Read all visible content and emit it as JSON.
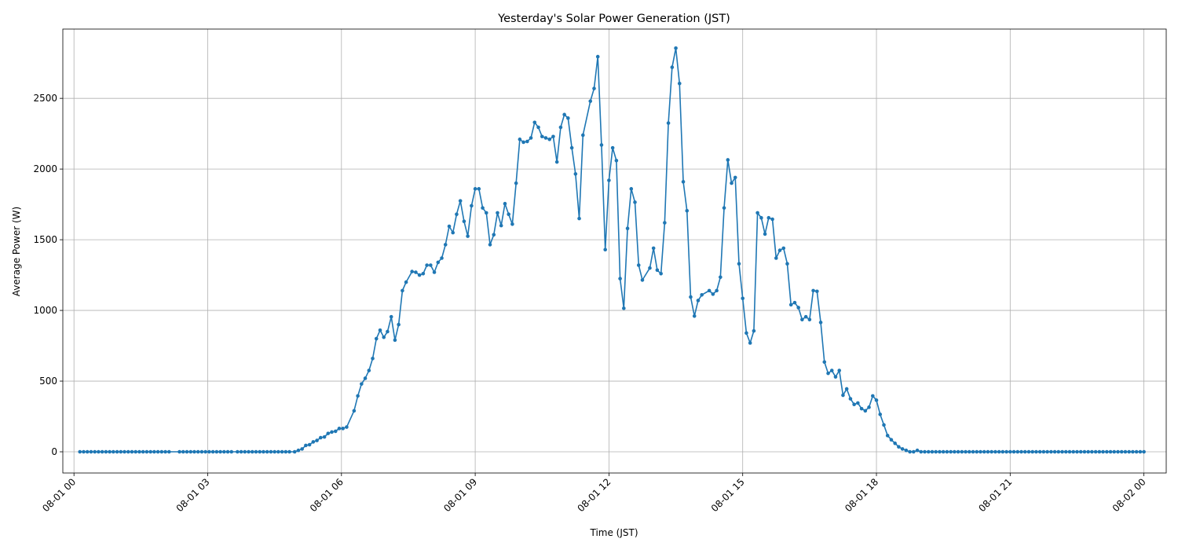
{
  "chart_data": {
    "type": "line",
    "title": "Yesterday's Solar Power Generation (JST)",
    "xlabel": "Time (JST)",
    "ylabel": "Average Power (W)",
    "grid": true,
    "color": "#1f77b4",
    "xlim": [
      -0.25,
      24.5
    ],
    "ylim": [
      -150,
      2990
    ],
    "y_ticks": [
      0,
      500,
      1000,
      1500,
      2000,
      2500
    ],
    "x_ticks": [
      {
        "label": "08-01 00",
        "hour": 0
      },
      {
        "label": "08-01 03",
        "hour": 3
      },
      {
        "label": "08-01 06",
        "hour": 6
      },
      {
        "label": "08-01 09",
        "hour": 9
      },
      {
        "label": "08-01 12",
        "hour": 12
      },
      {
        "label": "08-01 15",
        "hour": 15
      },
      {
        "label": "08-01 18",
        "hour": 18
      },
      {
        "label": "08-01 21",
        "hour": 21
      },
      {
        "label": "08-02 00",
        "hour": 24
      }
    ],
    "points": [
      [
        0.133,
        0
      ],
      [
        0.217,
        0
      ],
      [
        0.3,
        0
      ],
      [
        0.383,
        0
      ],
      [
        0.467,
        0
      ],
      [
        0.55,
        0
      ],
      [
        0.633,
        0
      ],
      [
        0.717,
        0
      ],
      [
        0.8,
        0
      ],
      [
        0.883,
        0
      ],
      [
        0.967,
        0
      ],
      [
        1.05,
        0
      ],
      [
        1.133,
        0
      ],
      [
        1.217,
        0
      ],
      [
        1.3,
        0
      ],
      [
        1.383,
        0
      ],
      [
        1.467,
        0
      ],
      [
        1.55,
        0
      ],
      [
        1.633,
        0
      ],
      [
        1.717,
        0
      ],
      [
        1.8,
        0
      ],
      [
        1.883,
        0
      ],
      [
        1.967,
        0
      ],
      [
        2.05,
        0
      ],
      [
        2.133,
        0
      ],
      [
        2.367,
        0
      ],
      [
        2.45,
        0
      ],
      [
        2.533,
        0
      ],
      [
        2.617,
        0
      ],
      [
        2.7,
        0
      ],
      [
        2.783,
        0
      ],
      [
        2.867,
        0
      ],
      [
        2.95,
        0
      ],
      [
        3.033,
        0
      ],
      [
        3.117,
        0
      ],
      [
        3.2,
        0
      ],
      [
        3.283,
        0
      ],
      [
        3.367,
        0
      ],
      [
        3.45,
        0
      ],
      [
        3.533,
        0
      ],
      [
        3.667,
        0
      ],
      [
        3.75,
        0
      ],
      [
        3.833,
        0
      ],
      [
        3.917,
        0
      ],
      [
        4.0,
        0
      ],
      [
        4.083,
        0
      ],
      [
        4.167,
        0
      ],
      [
        4.25,
        0
      ],
      [
        4.333,
        0
      ],
      [
        4.417,
        0
      ],
      [
        4.5,
        0
      ],
      [
        4.583,
        0
      ],
      [
        4.667,
        0
      ],
      [
        4.75,
        0
      ],
      [
        4.833,
        0
      ],
      [
        4.95,
        0
      ],
      [
        5.033,
        10
      ],
      [
        5.117,
        20
      ],
      [
        5.2,
        45
      ],
      [
        5.283,
        50
      ],
      [
        5.367,
        70
      ],
      [
        5.45,
        80
      ],
      [
        5.533,
        100
      ],
      [
        5.617,
        105
      ],
      [
        5.7,
        130
      ],
      [
        5.783,
        140
      ],
      [
        5.867,
        145
      ],
      [
        5.95,
        165
      ],
      [
        6.033,
        165
      ],
      [
        6.117,
        175
      ],
      [
        6.283,
        290
      ],
      [
        6.367,
        395
      ],
      [
        6.45,
        480
      ],
      [
        6.533,
        520
      ],
      [
        6.617,
        575
      ],
      [
        6.7,
        660
      ],
      [
        6.783,
        800
      ],
      [
        6.867,
        860
      ],
      [
        6.95,
        810
      ],
      [
        7.033,
        850
      ],
      [
        7.117,
        955
      ],
      [
        7.2,
        790
      ],
      [
        7.283,
        900
      ],
      [
        7.367,
        1140
      ],
      [
        7.45,
        1200
      ],
      [
        7.583,
        1275
      ],
      [
        7.667,
        1270
      ],
      [
        7.75,
        1250
      ],
      [
        7.833,
        1260
      ],
      [
        7.917,
        1320
      ],
      [
        8.0,
        1320
      ],
      [
        8.083,
        1270
      ],
      [
        8.167,
        1340
      ],
      [
        8.25,
        1370
      ],
      [
        8.333,
        1465
      ],
      [
        8.417,
        1595
      ],
      [
        8.5,
        1550
      ],
      [
        8.583,
        1680
      ],
      [
        8.667,
        1775
      ],
      [
        8.75,
        1630
      ],
      [
        8.833,
        1525
      ],
      [
        8.917,
        1740
      ],
      [
        9.0,
        1860
      ],
      [
        9.083,
        1860
      ],
      [
        9.167,
        1725
      ],
      [
        9.25,
        1690
      ],
      [
        9.333,
        1465
      ],
      [
        9.417,
        1535
      ],
      [
        9.5,
        1690
      ],
      [
        9.583,
        1600
      ],
      [
        9.667,
        1755
      ],
      [
        9.75,
        1680
      ],
      [
        9.833,
        1610
      ],
      [
        9.917,
        1900
      ],
      [
        10.0,
        2210
      ],
      [
        10.083,
        2190
      ],
      [
        10.167,
        2195
      ],
      [
        10.25,
        2220
      ],
      [
        10.333,
        2330
      ],
      [
        10.417,
        2295
      ],
      [
        10.5,
        2230
      ],
      [
        10.583,
        2220
      ],
      [
        10.667,
        2210
      ],
      [
        10.75,
        2230
      ],
      [
        10.833,
        2050
      ],
      [
        10.917,
        2295
      ],
      [
        11.0,
        2385
      ],
      [
        11.083,
        2360
      ],
      [
        11.167,
        2150
      ],
      [
        11.25,
        1965
      ],
      [
        11.333,
        1650
      ],
      [
        11.417,
        2240
      ],
      [
        11.583,
        2480
      ],
      [
        11.667,
        2570
      ],
      [
        11.75,
        2795
      ],
      [
        11.833,
        2170
      ],
      [
        11.917,
        1430
      ],
      [
        12.0,
        1920
      ],
      [
        12.083,
        2150
      ],
      [
        12.167,
        2060
      ],
      [
        12.25,
        1225
      ],
      [
        12.333,
        1015
      ],
      [
        12.417,
        1580
      ],
      [
        12.5,
        1860
      ],
      [
        12.583,
        1765
      ],
      [
        12.667,
        1320
      ],
      [
        12.75,
        1215
      ],
      [
        12.917,
        1300
      ],
      [
        13.0,
        1440
      ],
      [
        13.083,
        1285
      ],
      [
        13.167,
        1260
      ],
      [
        13.25,
        1620
      ],
      [
        13.333,
        2325
      ],
      [
        13.417,
        2720
      ],
      [
        13.5,
        2855
      ],
      [
        13.583,
        2605
      ],
      [
        13.667,
        1910
      ],
      [
        13.75,
        1705
      ],
      [
        13.833,
        1095
      ],
      [
        13.917,
        960
      ],
      [
        14.0,
        1070
      ],
      [
        14.083,
        1110
      ],
      [
        14.25,
        1140
      ],
      [
        14.333,
        1115
      ],
      [
        14.417,
        1140
      ],
      [
        14.5,
        1235
      ],
      [
        14.583,
        1725
      ],
      [
        14.667,
        2065
      ],
      [
        14.75,
        1900
      ],
      [
        14.833,
        1940
      ],
      [
        14.917,
        1330
      ],
      [
        15.0,
        1085
      ],
      [
        15.083,
        840
      ],
      [
        15.167,
        770
      ],
      [
        15.25,
        855
      ],
      [
        15.333,
        1690
      ],
      [
        15.417,
        1655
      ],
      [
        15.5,
        1540
      ],
      [
        15.583,
        1655
      ],
      [
        15.667,
        1645
      ],
      [
        15.75,
        1370
      ],
      [
        15.833,
        1425
      ],
      [
        15.917,
        1440
      ],
      [
        16.0,
        1330
      ],
      [
        16.083,
        1040
      ],
      [
        16.167,
        1055
      ],
      [
        16.25,
        1020
      ],
      [
        16.333,
        935
      ],
      [
        16.417,
        955
      ],
      [
        16.5,
        935
      ],
      [
        16.583,
        1140
      ],
      [
        16.667,
        1135
      ],
      [
        16.75,
        915
      ],
      [
        16.833,
        635
      ],
      [
        16.917,
        555
      ],
      [
        17.0,
        575
      ],
      [
        17.083,
        530
      ],
      [
        17.167,
        575
      ],
      [
        17.25,
        400
      ],
      [
        17.333,
        445
      ],
      [
        17.417,
        375
      ],
      [
        17.5,
        335
      ],
      [
        17.583,
        345
      ],
      [
        17.667,
        305
      ],
      [
        17.75,
        290
      ],
      [
        17.833,
        315
      ],
      [
        17.917,
        395
      ],
      [
        18.0,
        365
      ],
      [
        18.083,
        265
      ],
      [
        18.167,
        190
      ],
      [
        18.25,
        115
      ],
      [
        18.333,
        85
      ],
      [
        18.417,
        60
      ],
      [
        18.5,
        35
      ],
      [
        18.583,
        20
      ],
      [
        18.667,
        10
      ],
      [
        18.75,
        0
      ],
      [
        18.833,
        0
      ],
      [
        18.917,
        10
      ],
      [
        19.0,
        0
      ],
      [
        19.083,
        0
      ],
      [
        19.167,
        0
      ],
      [
        19.25,
        0
      ],
      [
        19.333,
        0
      ],
      [
        19.417,
        0
      ],
      [
        19.5,
        0
      ],
      [
        19.583,
        0
      ],
      [
        19.667,
        0
      ],
      [
        19.75,
        0
      ],
      [
        19.833,
        0
      ],
      [
        19.917,
        0
      ],
      [
        20.0,
        0
      ],
      [
        20.083,
        0
      ],
      [
        20.167,
        0
      ],
      [
        20.25,
        0
      ],
      [
        20.333,
        0
      ],
      [
        20.417,
        0
      ],
      [
        20.5,
        0
      ],
      [
        20.583,
        0
      ],
      [
        20.667,
        0
      ],
      [
        20.75,
        0
      ],
      [
        20.833,
        0
      ],
      [
        20.917,
        0
      ],
      [
        21.0,
        0
      ],
      [
        21.083,
        0
      ],
      [
        21.167,
        0
      ],
      [
        21.25,
        0
      ],
      [
        21.333,
        0
      ],
      [
        21.417,
        0
      ],
      [
        21.5,
        0
      ],
      [
        21.583,
        0
      ],
      [
        21.667,
        0
      ],
      [
        21.75,
        0
      ],
      [
        21.833,
        0
      ],
      [
        21.917,
        0
      ],
      [
        22.0,
        0
      ],
      [
        22.083,
        0
      ],
      [
        22.167,
        0
      ],
      [
        22.25,
        0
      ],
      [
        22.333,
        0
      ],
      [
        22.417,
        0
      ],
      [
        22.5,
        0
      ],
      [
        22.583,
        0
      ],
      [
        22.667,
        0
      ],
      [
        22.75,
        0
      ],
      [
        22.833,
        0
      ],
      [
        22.917,
        0
      ],
      [
        23.0,
        0
      ],
      [
        23.083,
        0
      ],
      [
        23.167,
        0
      ],
      [
        23.25,
        0
      ],
      [
        23.333,
        0
      ],
      [
        23.417,
        0
      ],
      [
        23.5,
        0
      ],
      [
        23.583,
        0
      ],
      [
        23.667,
        0
      ],
      [
        23.75,
        0
      ],
      [
        23.833,
        0
      ],
      [
        23.917,
        0
      ],
      [
        24.0,
        0
      ]
    ]
  }
}
